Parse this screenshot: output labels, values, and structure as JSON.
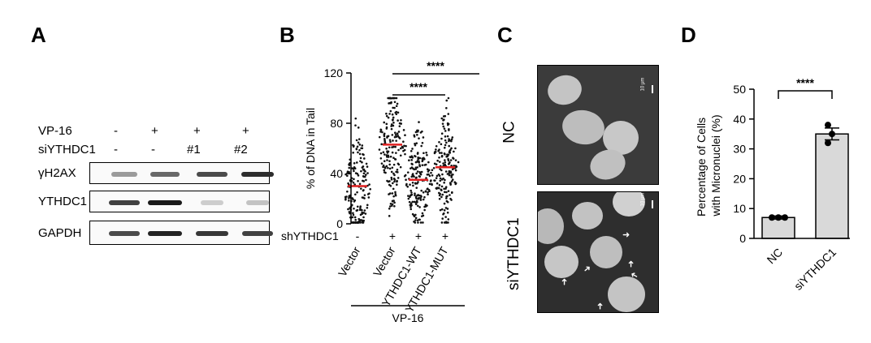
{
  "panels": {
    "a": {
      "letter": "A",
      "row_labels": {
        "vp16": "VP-16",
        "siythdc1": "siYTHDC1"
      },
      "vp16_marks": [
        "-",
        "+",
        "+",
        "+"
      ],
      "si_marks": [
        "-",
        "-",
        "#1",
        "#2"
      ],
      "blots": [
        {
          "label": "γH2AX",
          "intensities": [
            0.35,
            0.6,
            0.75,
            0.9
          ]
        },
        {
          "label": "YTHDC1",
          "intensities": [
            0.8,
            1.0,
            0.1,
            0.15
          ]
        },
        {
          "label": "GAPDH",
          "intensities": [
            0.75,
            0.95,
            0.85,
            0.8
          ]
        }
      ]
    },
    "b": {
      "letter": "B",
      "group_label": "VP-16"
    },
    "c": {
      "letter": "C",
      "label_top": "NC",
      "label_bottom": "siYTHDC1",
      "scalebar": "10 μm"
    },
    "d": {
      "letter": "D"
    }
  },
  "chart_data": [
    {
      "type": "scatter",
      "panel": "B",
      "ylabel": "% of DNA in Tail",
      "ylim": [
        0,
        120
      ],
      "yticks": [
        0,
        40,
        80,
        120
      ],
      "row_label": "shYTHDC1",
      "categories": [
        "Vector",
        "Vector",
        "YTHDC1-WT",
        "YTHDC1-MUT"
      ],
      "sh_marks": [
        "-",
        "+",
        "+",
        "+"
      ],
      "means": [
        30,
        63,
        35,
        45
      ],
      "ranges": [
        [
          1,
          100
        ],
        [
          1,
          100
        ],
        [
          1,
          90
        ],
        [
          1,
          100
        ]
      ],
      "significance": [
        "****",
        "****"
      ],
      "mean_color": "#e02020"
    },
    {
      "type": "bar",
      "panel": "D",
      "ylabel": "Percentage of Cells with Micronuclei (%)",
      "ylim": [
        0,
        50
      ],
      "yticks": [
        0,
        10,
        20,
        30,
        40,
        50
      ],
      "categories": [
        "NC",
        "siYTHDC1"
      ],
      "values": [
        7,
        35
      ],
      "errors": [
        0.5,
        2.0
      ],
      "points": [
        [
          7,
          7,
          7
        ],
        [
          38,
          35,
          32
        ]
      ],
      "significance": "****",
      "bar_color": "#d9d9d9"
    }
  ]
}
